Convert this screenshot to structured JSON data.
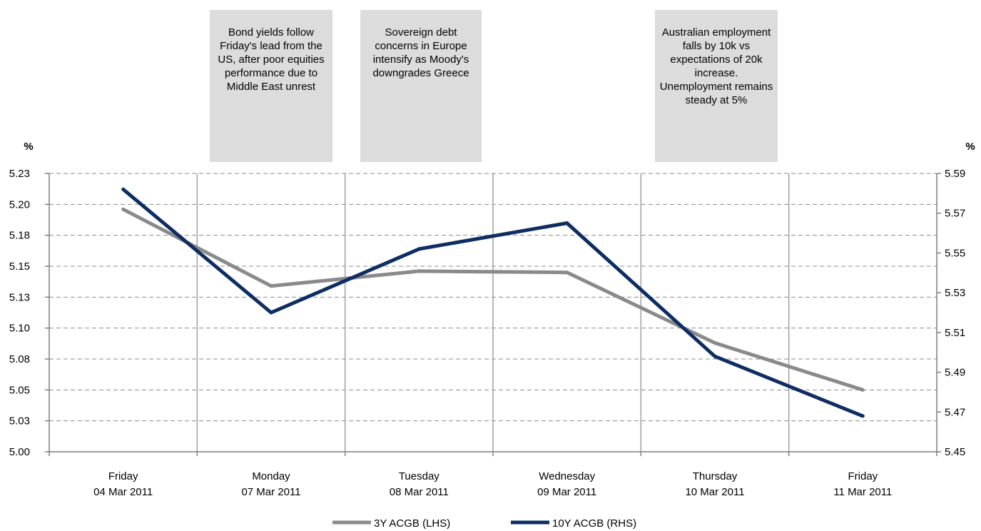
{
  "annotations": [
    {
      "text": "Bond yields follow Friday's lead from the US, after poor equities performance due to Middle East unrest"
    },
    {
      "text": "Sovereign debt concerns in Europe intensify as Moody's downgrades Greece"
    },
    {
      "text": "Australian employment falls by 10k vs expectations of 20k increase. Unemployment remains steady at 5%"
    }
  ],
  "chart_data": {
    "type": "line",
    "left_unit": "%",
    "right_unit": "%",
    "categories": [
      [
        "Friday",
        "04 Mar 2011"
      ],
      [
        "Monday",
        "07 Mar 2011"
      ],
      [
        "Tuesday",
        "08 Mar 2011"
      ],
      [
        "Wednesday",
        "09 Mar 2011"
      ],
      [
        "Thursday",
        "10 Mar 2011"
      ],
      [
        "Friday",
        "11 Mar 2011"
      ]
    ],
    "left_axis": {
      "ylim": [
        5.0,
        5.225
      ],
      "ticks": [
        "5.23",
        "5.20",
        "5.18",
        "5.15",
        "5.13",
        "5.10",
        "5.08",
        "5.05",
        "5.03",
        "5.00"
      ]
    },
    "right_axis": {
      "ylim": [
        5.45,
        5.59
      ],
      "ticks": [
        "5.59",
        "5.57",
        "5.55",
        "5.53",
        "5.51",
        "5.49",
        "5.47",
        "5.45"
      ]
    },
    "series": [
      {
        "name": "3Y ACGB (LHS)",
        "axis": "left",
        "color": "#8a8a8a",
        "values": [
          5.196,
          5.134,
          5.146,
          5.145,
          5.088,
          5.05
        ]
      },
      {
        "name": "10Y ACGB (RHS)",
        "axis": "right",
        "color": "#0d2d63",
        "values": [
          5.582,
          5.52,
          5.552,
          5.565,
          5.498,
          5.468
        ]
      }
    ],
    "grid": true,
    "legend": "bottom"
  }
}
